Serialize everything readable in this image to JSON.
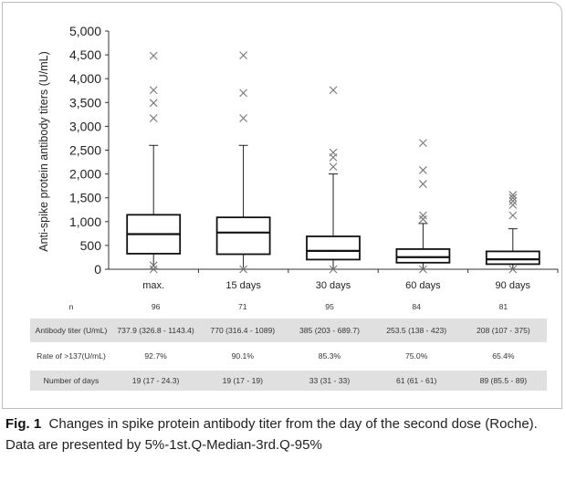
{
  "chart_data": {
    "type": "box",
    "ylabel": "Anti-spike protein antibody titers (U/mL)",
    "ylim": [
      0,
      5000
    ],
    "yticks": [
      "0",
      "500",
      "1,000",
      "1,500",
      "2,000",
      "2,500",
      "3,000",
      "3,500",
      "4,000",
      "4,500",
      "5,000"
    ],
    "ytick_values": [
      0,
      500,
      1000,
      1500,
      2000,
      2500,
      3000,
      3500,
      4000,
      4500,
      5000
    ],
    "categories": [
      "max.",
      "15 days",
      "30 days",
      "60 days",
      "90 days"
    ],
    "boxes": [
      {
        "whisker_low": 50,
        "q1": 327,
        "median": 738,
        "q3": 1143,
        "whisker_high": 2600,
        "outliers": [
          3170,
          3490,
          3760,
          4480
        ],
        "low_marks": [
          0,
          80
        ]
      },
      {
        "whisker_low": 30,
        "q1": 316,
        "median": 770,
        "q3": 1089,
        "whisker_high": 2600,
        "outliers": [
          3170,
          3700,
          4490
        ],
        "low_marks": [
          0
        ]
      },
      {
        "whisker_low": 20,
        "q1": 203,
        "median": 385,
        "q3": 690,
        "whisker_high": 2000,
        "outliers": [
          2150,
          2350,
          2450,
          3760
        ],
        "low_marks": [
          0
        ]
      },
      {
        "whisker_low": 20,
        "q1": 138,
        "median": 254,
        "q3": 423,
        "whisker_high": 960,
        "outliers": [
          1050,
          1130,
          1790,
          2080,
          2650
        ],
        "low_marks": [
          0
        ]
      },
      {
        "whisker_low": 10,
        "q1": 107,
        "median": 208,
        "q3": 375,
        "whisker_high": 850,
        "outliers": [
          1130,
          1350,
          1430,
          1500,
          1560
        ],
        "low_marks": [
          0
        ]
      }
    ]
  },
  "table": {
    "rows": [
      {
        "label": "n",
        "values": [
          "96",
          "71",
          "95",
          "84",
          "81"
        ]
      },
      {
        "label": "Antibody titer (U/mL)",
        "values": [
          "737.9 (326.8 - 1143.4)",
          "770 (316.4 - 1089)",
          "385 (203 - 689.7)",
          "253.5 (138 - 423)",
          "208 (107 - 375)"
        ]
      },
      {
        "label": "Rate of >137(U/mL)",
        "values": [
          "92.7%",
          "90.1%",
          "85.3%",
          "75.0%",
          "65.4%"
        ]
      },
      {
        "label": "Number of days",
        "values": [
          "19 (17 - 24.3)",
          "19 (17 - 19)",
          "33 (31 - 33)",
          "61 (61 - 61)",
          "89 (85.5 - 89)"
        ]
      }
    ]
  },
  "caption": {
    "label": "Fig. 1",
    "text": "Changes in spike protein antibody titer from the day of the second dose (Roche). Data are presented by 5%-1st.Q-Median-3rd.Q-95%"
  }
}
